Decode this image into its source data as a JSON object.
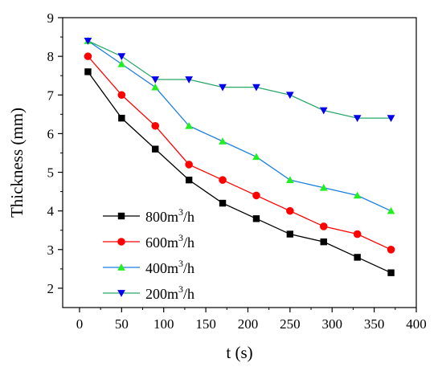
{
  "chart_data": {
    "type": "line",
    "xlabel": "t (s)",
    "ylabel": "Thickness (mm)",
    "xlim": [
      -20,
      400
    ],
    "ylim": [
      1.5,
      9
    ],
    "xticks": [
      0,
      50,
      100,
      150,
      200,
      250,
      300,
      350,
      400
    ],
    "yticks": [
      2,
      3,
      4,
      5,
      6,
      7,
      8,
      9
    ],
    "legend_position": "bottom-left",
    "x": [
      10,
      50,
      90,
      130,
      170,
      210,
      250,
      290,
      330,
      370
    ],
    "series": [
      {
        "name": "800m3/h",
        "legend_base": "800m",
        "legend_sup": "3",
        "legend_tail": "/h",
        "color": "#000000",
        "marker": "square",
        "values": [
          7.6,
          6.4,
          5.6,
          4.8,
          4.2,
          3.8,
          3.4,
          3.2,
          2.8,
          2.4
        ]
      },
      {
        "name": "600m3/h",
        "legend_base": "600m",
        "legend_sup": "3",
        "legend_tail": "/h",
        "color": "#ff0000",
        "marker": "circle",
        "values": [
          8.0,
          7.0,
          6.2,
          5.2,
          4.8,
          4.4,
          4.0,
          3.6,
          3.4,
          3.0
        ]
      },
      {
        "name": "400m3/h",
        "legend_base": "400m",
        "legend_sup": "3",
        "legend_tail": "/h",
        "color": "#1a7fe0",
        "marker": "triangle-up",
        "marker_color": "#22ee22",
        "values": [
          8.4,
          7.8,
          7.2,
          6.2,
          5.8,
          5.4,
          4.8,
          4.6,
          4.4,
          4.0
        ]
      },
      {
        "name": "200m3/h",
        "legend_base": "200m",
        "legend_sup": "3",
        "legend_tail": "/h",
        "color": "#2aa86a",
        "marker": "triangle-down",
        "marker_color": "#0000ee",
        "values": [
          8.4,
          8.0,
          7.4,
          7.4,
          7.2,
          7.2,
          7.0,
          6.6,
          6.4,
          6.4
        ]
      }
    ]
  }
}
